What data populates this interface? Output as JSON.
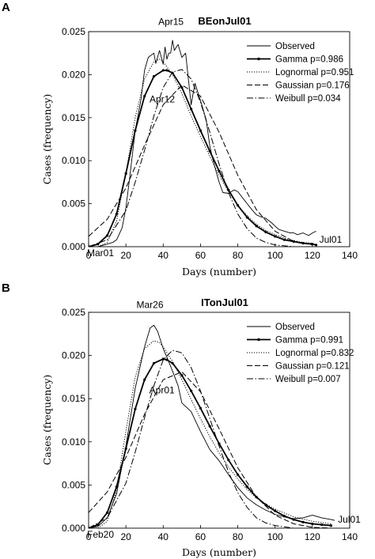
{
  "chart_data": [
    {
      "panel": "A",
      "type": "line",
      "title": "BEonJul01",
      "xlabel": "Days (number)",
      "ylabel": "Cases (frequency)",
      "xlim": [
        0,
        140
      ],
      "ylim": [
        0,
        0.025
      ],
      "xticks": [
        "0",
        "20",
        "40",
        "60",
        "80",
        "100",
        "120",
        "140"
      ],
      "yticks": [
        "0.000",
        "0.005",
        "0.010",
        "0.015",
        "0.020",
        "0.025"
      ],
      "annotations": [
        {
          "text": "Apr15",
          "x": 45,
          "y": 0.0243
        },
        {
          "text": "Apr12",
          "x": 42,
          "y": 0.0187
        },
        {
          "text": "Mar01",
          "x": 0,
          "y": -0.0005
        },
        {
          "text": "Jul01",
          "x": 122,
          "y": 0.001
        }
      ],
      "series": [
        {
          "name": "Observed",
          "style": "solid-thin",
          "x": [
            0,
            5,
            10,
            13,
            15,
            18,
            20,
            22,
            25,
            28,
            30,
            32,
            35,
            36,
            38,
            40,
            41,
            42,
            43,
            44,
            45,
            46,
            47,
            48,
            50,
            52,
            55,
            57,
            60,
            63,
            65,
            67,
            70,
            72,
            75,
            78,
            80,
            85,
            88,
            90,
            92,
            95,
            98,
            100,
            102,
            105,
            108,
            110,
            112,
            115,
            118,
            120,
            122
          ],
          "y": [
            0.0,
            0.0,
            0.0003,
            0.0005,
            0.0008,
            0.0022,
            0.0045,
            0.008,
            0.0135,
            0.017,
            0.0205,
            0.022,
            0.0225,
            0.0213,
            0.0228,
            0.0212,
            0.0232,
            0.0218,
            0.0225,
            0.0225,
            0.024,
            0.0228,
            0.0232,
            0.0235,
            0.022,
            0.0225,
            0.0165,
            0.019,
            0.017,
            0.0148,
            0.0117,
            0.0098,
            0.0075,
            0.0063,
            0.0062,
            0.0066,
            0.0064,
            0.005,
            0.0042,
            0.0037,
            0.0035,
            0.0033,
            0.0028,
            0.0024,
            0.002,
            0.0018,
            0.0016,
            0.0016,
            0.0014,
            0.0016,
            0.0013,
            0.0016,
            0.0018
          ]
        },
        {
          "name": "Gamma p=0.986",
          "style": "solid-bold-dots",
          "x": [
            0,
            5,
            10,
            15,
            20,
            25,
            30,
            35,
            40,
            42,
            45,
            50,
            55,
            60,
            65,
            70,
            75,
            80,
            85,
            90,
            95,
            100,
            105,
            110,
            115,
            120,
            122
          ],
          "y": [
            0.0,
            0.0003,
            0.0013,
            0.0038,
            0.0085,
            0.0135,
            0.0175,
            0.0198,
            0.0205,
            0.0205,
            0.0202,
            0.0185,
            0.016,
            0.0135,
            0.0111,
            0.0088,
            0.0066,
            0.0048,
            0.0034,
            0.0024,
            0.0017,
            0.0012,
            0.0008,
            0.0006,
            0.0004,
            0.0003,
            0.0002
          ]
        },
        {
          "name": "Lognormal p=0.951",
          "style": "dotted",
          "x": [
            0,
            5,
            10,
            15,
            20,
            25,
            30,
            35,
            38,
            40,
            45,
            50,
            55,
            60,
            65,
            70,
            75,
            80,
            85,
            90,
            95,
            100,
            105,
            110,
            115,
            120
          ],
          "y": [
            0.0,
            0.0,
            0.0005,
            0.003,
            0.0085,
            0.015,
            0.0195,
            0.0215,
            0.0218,
            0.0215,
            0.02,
            0.0178,
            0.0152,
            0.0128,
            0.0105,
            0.0083,
            0.0064,
            0.0048,
            0.0036,
            0.0026,
            0.0019,
            0.0014,
            0.001,
            0.0007,
            0.0005,
            0.0004
          ]
        },
        {
          "name": "Gaussian p=0.176",
          "style": "dashed",
          "x": [
            0,
            10,
            20,
            30,
            40,
            50,
            60,
            70,
            80,
            90,
            100,
            110,
            120
          ],
          "y": [
            0.0012,
            0.0032,
            0.0068,
            0.0118,
            0.0165,
            0.0188,
            0.0175,
            0.0133,
            0.0083,
            0.0043,
            0.0018,
            0.0006,
            0.0002
          ]
        },
        {
          "name": "Weibull p=0.034",
          "style": "dash-dot",
          "x": [
            0,
            10,
            20,
            25,
            30,
            35,
            40,
            45,
            50,
            55,
            60,
            65,
            70,
            75,
            80,
            85,
            90,
            95,
            100,
            110,
            120
          ],
          "y": [
            0.0,
            0.0008,
            0.0042,
            0.0075,
            0.0112,
            0.0152,
            0.0185,
            0.0203,
            0.0206,
            0.0195,
            0.0168,
            0.0133,
            0.0096,
            0.0063,
            0.0038,
            0.0021,
            0.001,
            0.0005,
            0.0002,
            0.0,
            0.0
          ]
        }
      ],
      "legend": "top-right"
    },
    {
      "panel": "B",
      "type": "line",
      "title": "ITonJul01",
      "xlabel": "Days (number)",
      "ylabel": "Cases (frequency)",
      "xlim": [
        0,
        140
      ],
      "ylim": [
        0,
        0.025
      ],
      "xticks": [
        "0",
        "20",
        "40",
        "60",
        "80",
        "100",
        "120",
        "140"
      ],
      "yticks": [
        "0.000",
        "0.005",
        "0.010",
        "0.015",
        "0.020",
        "0.025"
      ],
      "annotations": [
        {
          "text": "Mar26",
          "x": 35,
          "y": 0.0242
        },
        {
          "text": "Apr01",
          "x": 41,
          "y": 0.0178
        },
        {
          "text": "Feb20",
          "x": 0,
          "y": -0.0005
        },
        {
          "text": "Jul01",
          "x": 132,
          "y": 0.001
        }
      ],
      "series": [
        {
          "name": "Observed",
          "style": "solid-thin",
          "x": [
            0,
            5,
            10,
            15,
            20,
            25,
            30,
            33,
            35,
            37,
            40,
            42,
            45,
            48,
            50,
            55,
            60,
            65,
            70,
            75,
            80,
            85,
            90,
            95,
            100,
            105,
            110,
            115,
            120,
            125,
            130,
            132
          ],
          "y": [
            0.0,
            0.0002,
            0.0012,
            0.004,
            0.0095,
            0.0162,
            0.021,
            0.0232,
            0.0235,
            0.0228,
            0.0208,
            0.0198,
            0.0182,
            0.0165,
            0.0145,
            0.0135,
            0.0112,
            0.0091,
            0.0078,
            0.0062,
            0.0047,
            0.0035,
            0.0027,
            0.0021,
            0.0016,
            0.0013,
            0.0011,
            0.0012,
            0.0015,
            0.0012,
            0.001,
            0.0009
          ]
        },
        {
          "name": "Gamma p=0.991",
          "style": "solid-bold-dots",
          "x": [
            0,
            5,
            10,
            15,
            20,
            25,
            30,
            35,
            40,
            42,
            45,
            50,
            55,
            60,
            65,
            70,
            75,
            80,
            85,
            90,
            95,
            100,
            105,
            110,
            115,
            120,
            125,
            130
          ],
          "y": [
            0.0,
            0.0004,
            0.0018,
            0.0048,
            0.0092,
            0.0138,
            0.0172,
            0.0191,
            0.0196,
            0.0195,
            0.0191,
            0.0177,
            0.0159,
            0.0139,
            0.0118,
            0.0098,
            0.0079,
            0.0062,
            0.0048,
            0.0036,
            0.0027,
            0.002,
            0.0014,
            0.001,
            0.0007,
            0.0005,
            0.0004,
            0.0003
          ]
        },
        {
          "name": "Lognormal p=0.832",
          "style": "dotted",
          "x": [
            0,
            5,
            10,
            15,
            20,
            25,
            30,
            35,
            38,
            40,
            45,
            50,
            55,
            60,
            65,
            70,
            75,
            80,
            85,
            90,
            95,
            100,
            110,
            120,
            130
          ],
          "y": [
            0.0,
            0.0,
            0.0008,
            0.0045,
            0.0112,
            0.0175,
            0.0208,
            0.0217,
            0.0215,
            0.021,
            0.0193,
            0.0172,
            0.0149,
            0.0127,
            0.0106,
            0.0087,
            0.0071,
            0.0057,
            0.0045,
            0.0035,
            0.0028,
            0.0022,
            0.0013,
            0.0008,
            0.0005
          ]
        },
        {
          "name": "Gaussian p=0.121",
          "style": "dashed",
          "x": [
            0,
            10,
            20,
            30,
            40,
            50,
            60,
            70,
            80,
            90,
            100,
            110,
            120,
            130
          ],
          "y": [
            0.0018,
            0.0042,
            0.0082,
            0.0132,
            0.0172,
            0.0181,
            0.0158,
            0.0115,
            0.007,
            0.0036,
            0.0015,
            0.0005,
            0.0001,
            0.0
          ]
        },
        {
          "name": "Weibull p=0.007",
          "style": "dash-dot",
          "x": [
            0,
            10,
            20,
            25,
            30,
            35,
            40,
            45,
            50,
            55,
            60,
            65,
            70,
            75,
            80,
            85,
            90,
            95,
            100,
            110,
            120,
            130
          ],
          "y": [
            0.0,
            0.0012,
            0.0052,
            0.0088,
            0.0128,
            0.0165,
            0.0195,
            0.0206,
            0.0203,
            0.0186,
            0.0159,
            0.0127,
            0.0095,
            0.0065,
            0.0041,
            0.0024,
            0.0012,
            0.0006,
            0.0003,
            0.0,
            0.0,
            0.0
          ]
        }
      ],
      "legend": "top-right"
    }
  ]
}
